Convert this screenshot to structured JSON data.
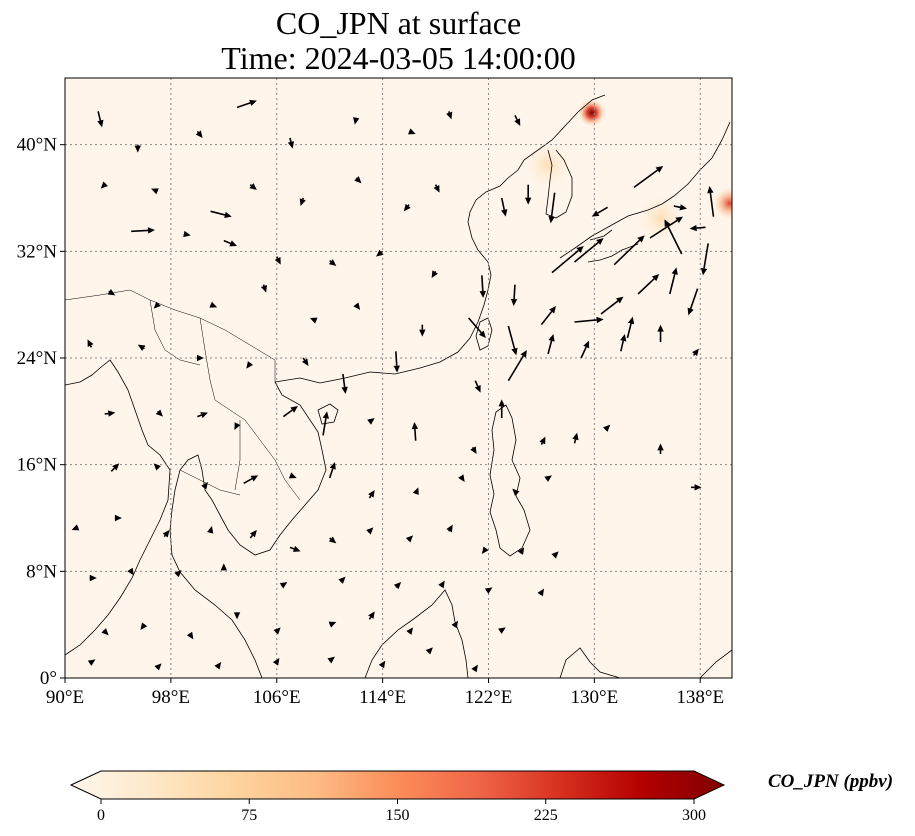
{
  "map": {
    "title_line1": "CO_JPN at surface",
    "title_line2": "Time: 2024-03-05 14:00:00",
    "lon_range": [
      90,
      140.4
    ],
    "lat_range": [
      0,
      45
    ],
    "lon_ticks": [
      {
        "value": 90,
        "label": "90°E"
      },
      {
        "value": 98,
        "label": "98°E"
      },
      {
        "value": 106,
        "label": "106°E"
      },
      {
        "value": 114,
        "label": "114°E"
      },
      {
        "value": 122,
        "label": "122°E"
      },
      {
        "value": 130,
        "label": "130°E"
      },
      {
        "value": 138,
        "label": "138°E"
      }
    ],
    "lat_ticks": [
      {
        "value": 0,
        "label": "0°"
      },
      {
        "value": 8,
        "label": "8°N"
      },
      {
        "value": 16,
        "label": "16°N"
      },
      {
        "value": 24,
        "label": "24°N"
      },
      {
        "value": 32,
        "label": "32°N"
      },
      {
        "value": 40,
        "label": "40°N"
      }
    ],
    "gridlines": "dotted",
    "background_color": "#fff5eb",
    "coastline_color": "#000000",
    "hotspots": [
      {
        "lon": 129.8,
        "lat": 42.4,
        "level": "max"
      },
      {
        "lon": 140.2,
        "lat": 35.6,
        "level": "high"
      },
      {
        "lon": 126.5,
        "lat": 38.5,
        "level": "low"
      },
      {
        "lon": 135.0,
        "lat": 34.5,
        "level": "low"
      }
    ],
    "wind_vectors_note_units": "degrees lon/lat",
    "wind_vectors": [
      [
        92.5,
        42.5,
        0.3,
        -1.2
      ],
      [
        95.5,
        40,
        0,
        -0.6
      ],
      [
        100,
        41,
        0.4,
        -0.5
      ],
      [
        103,
        42.8,
        1.5,
        0.5
      ],
      [
        107,
        40.5,
        0.2,
        -0.8
      ],
      [
        112,
        42,
        -0.1,
        -0.5
      ],
      [
        116,
        41,
        0.5,
        -0.2
      ],
      [
        119,
        42.5,
        0.2,
        -0.6
      ],
      [
        124,
        42.2,
        0.4,
        -0.8
      ],
      [
        93,
        37,
        -0.3,
        -0.3
      ],
      [
        97,
        36.5,
        -0.5,
        0.2
      ],
      [
        101,
        35,
        1.6,
        -0.4
      ],
      [
        104,
        37,
        0.5,
        -0.4
      ],
      [
        108,
        36,
        -0.2,
        -0.6
      ],
      [
        112,
        37.5,
        0.4,
        -0.4
      ],
      [
        116,
        35.5,
        -0.4,
        -0.5
      ],
      [
        118,
        37,
        0.3,
        -0.6
      ],
      [
        123,
        36,
        0.3,
        -1.4
      ],
      [
        125,
        37,
        0,
        -1.5
      ],
      [
        127,
        36.4,
        -0.3,
        -2.3
      ],
      [
        131,
        35.3,
        -1.2,
        -0.7
      ],
      [
        133,
        36.8,
        2.2,
        1.6
      ],
      [
        136,
        35.4,
        1,
        -0.2
      ],
      [
        139,
        34.6,
        -0.3,
        2.3
      ],
      [
        138.4,
        33.8,
        -1.2,
        -0.1
      ],
      [
        95,
        33.5,
        1.8,
        0.1
      ],
      [
        99,
        33.3,
        0.5,
        -0.1
      ],
      [
        102,
        32.8,
        1,
        -0.4
      ],
      [
        106,
        31.6,
        0.3,
        -0.6
      ],
      [
        110,
        31.3,
        0.5,
        -0.4
      ],
      [
        114,
        32,
        -0.5,
        -0.4
      ],
      [
        118,
        30.5,
        -0.3,
        -0.5
      ],
      [
        121.5,
        30.2,
        0.1,
        -1.7
      ],
      [
        124,
        29.5,
        -0.1,
        -1.6
      ],
      [
        126.8,
        30.4,
        2.4,
        2
      ],
      [
        128.5,
        31.2,
        2.2,
        1.8
      ],
      [
        131.5,
        31,
        2.3,
        2.2
      ],
      [
        134.2,
        33,
        2.5,
        1.6
      ],
      [
        136.6,
        31.8,
        -1.3,
        2.6
      ],
      [
        138.6,
        32.6,
        -0.4,
        -2.4
      ],
      [
        93.3,
        29,
        0.5,
        -0.3
      ],
      [
        97,
        28,
        -0.3,
        -0.3
      ],
      [
        101,
        28,
        0.5,
        -0.2
      ],
      [
        105,
        29.5,
        0.2,
        -0.6
      ],
      [
        109,
        26.8,
        -0.5,
        0.2
      ],
      [
        112,
        28,
        0.3,
        -0.4
      ],
      [
        117,
        26.5,
        0,
        -0.9
      ],
      [
        120.5,
        27,
        1.3,
        -1.5
      ],
      [
        123.5,
        26.4,
        0.6,
        -2.2
      ],
      [
        126,
        26.5,
        1.1,
        1.4
      ],
      [
        128.5,
        26.7,
        2.2,
        0.2
      ],
      [
        130.5,
        27.3,
        1.7,
        1.3
      ],
      [
        133.3,
        28.8,
        1.6,
        1.5
      ],
      [
        135.7,
        28.8,
        0.5,
        2
      ],
      [
        137.8,
        29.2,
        -0.7,
        -2
      ],
      [
        135,
        25.2,
        0,
        1.3
      ],
      [
        132.5,
        25.5,
        0.4,
        1.6
      ],
      [
        92,
        24.8,
        -0.3,
        0.6
      ],
      [
        96,
        24.7,
        -0.5,
        0.3
      ],
      [
        100,
        24,
        0.5,
        0
      ],
      [
        104,
        23.6,
        -0.3,
        -0.4
      ],
      [
        108,
        24,
        0.4,
        -0.6
      ],
      [
        111,
        22.8,
        0.2,
        -1.5
      ],
      [
        115,
        24.5,
        0.1,
        -1.6
      ],
      [
        121,
        22.3,
        0.4,
        -0.9
      ],
      [
        123.5,
        22.3,
        1.4,
        2.3
      ],
      [
        126.5,
        24.3,
        0.4,
        1.5
      ],
      [
        129,
        24,
        0.6,
        1.3
      ],
      [
        132,
        24.5,
        0.3,
        1.3
      ],
      [
        137.5,
        24.2,
        0.4,
        0.5
      ],
      [
        93,
        19.8,
        0.8,
        0.1
      ],
      [
        97,
        20,
        0.4,
        -0.4
      ],
      [
        100,
        19.6,
        0.8,
        0.3
      ],
      [
        103,
        19,
        -0.2,
        -0.4
      ],
      [
        106.5,
        19.6,
        1.1,
        0.8
      ],
      [
        109.5,
        18.2,
        0.3,
        1.8
      ],
      [
        113,
        19.2,
        0.4,
        0.3
      ],
      [
        116.5,
        17.8,
        -0.1,
        1.4
      ],
      [
        120.8,
        17.3,
        0.3,
        -0.5
      ],
      [
        123,
        19.5,
        0,
        1.4
      ],
      [
        126,
        17.5,
        0.3,
        0.6
      ],
      [
        128.5,
        17.6,
        0.2,
        0.8
      ],
      [
        131,
        18.8,
        0.2,
        0.2
      ],
      [
        135,
        16.8,
        0,
        0.8
      ],
      [
        93.5,
        15.5,
        0.6,
        0.6
      ],
      [
        97,
        15.8,
        -0.3,
        0.3
      ],
      [
        100.5,
        14.3,
        0.3,
        0.4
      ],
      [
        103.5,
        14.6,
        1.1,
        0.6
      ],
      [
        107,
        15.2,
        0.5,
        -0.2
      ],
      [
        110,
        15,
        0.4,
        1.2
      ],
      [
        113,
        13.5,
        0.4,
        0.6
      ],
      [
        116.5,
        13.8,
        0.2,
        0.5
      ],
      [
        120,
        15,
        0.2,
        -0.3
      ],
      [
        124,
        14,
        -0.2,
        0.2
      ],
      [
        126.5,
        15,
        0.3,
        0.2
      ],
      [
        137.3,
        14.3,
        0.8,
        0
      ],
      [
        91,
        11.3,
        -0.5,
        -0.2
      ],
      [
        94,
        12,
        0.3,
        0
      ],
      [
        97.5,
        10.6,
        0.4,
        0.5
      ],
      [
        101,
        11,
        0.1,
        0.4
      ],
      [
        104,
        10.5,
        0.5,
        0.6
      ],
      [
        107,
        9.8,
        0.8,
        -0.3
      ],
      [
        110,
        10.5,
        0.5,
        -0.4
      ],
      [
        113,
        11,
        0.3,
        0.3
      ],
      [
        116,
        10.4,
        0.3,
        0.3
      ],
      [
        119,
        11,
        0.3,
        0.5
      ],
      [
        121.8,
        9.7,
        -0.3,
        -0.4
      ],
      [
        124.5,
        9.5,
        0.2,
        0.3
      ],
      [
        127,
        9.2,
        0.3,
        0.3
      ],
      [
        92,
        7.5,
        0.4,
        0
      ],
      [
        95,
        8,
        0.2,
        -0.3
      ],
      [
        98.5,
        7.8,
        0.3,
        0.3
      ],
      [
        102,
        8.2,
        0,
        0.4
      ],
      [
        106.5,
        7,
        0.3,
        0.2
      ],
      [
        111,
        7.4,
        0.2,
        0.2
      ],
      [
        115,
        6.8,
        0.4,
        0.4
      ],
      [
        118.5,
        7,
        0.2,
        0.3
      ],
      [
        122,
        6.6,
        0.3,
        0.2
      ],
      [
        126,
        6.4,
        0.2,
        0.3
      ],
      [
        93,
        3.5,
        0.3,
        -0.3
      ],
      [
        96,
        4,
        -0.3,
        -0.4
      ],
      [
        99.5,
        3.2,
        0.2,
        -0.3
      ],
      [
        103,
        4.6,
        0,
        -0.2
      ],
      [
        106,
        3.5,
        0.3,
        0.3
      ],
      [
        110,
        4,
        0.5,
        0.2
      ],
      [
        113,
        4.4,
        0.4,
        0.6
      ],
      [
        116,
        3.4,
        0.3,
        0.4
      ],
      [
        119.5,
        4,
        0.2,
        0.3
      ],
      [
        123,
        3.6,
        0.3,
        0.2
      ],
      [
        92,
        1.2,
        0.3,
        0.2
      ],
      [
        97,
        0.8,
        0.3,
        0.3
      ],
      [
        101.5,
        0.8,
        0.3,
        0.4
      ],
      [
        106,
        1.2,
        0.2,
        0.3
      ],
      [
        110,
        1.3,
        0.4,
        0.3
      ],
      [
        114,
        1,
        0.2,
        0.3
      ],
      [
        117.5,
        2,
        0.3,
        0.3
      ],
      [
        121,
        0.7,
        0.2,
        0.3
      ]
    ]
  },
  "colorbar": {
    "title": "CO_JPN (ppbv)",
    "min": 0,
    "max": 300,
    "extend": "both",
    "colormap": "OrRd",
    "colors": [
      "#fff7ec",
      "#fee8c8",
      "#fdd49e",
      "#fdbb84",
      "#fc8d59",
      "#ef6548",
      "#d7301f",
      "#b30000",
      "#7f0000"
    ],
    "ticks": [
      {
        "value": 0,
        "label": "0"
      },
      {
        "value": 75,
        "label": "75"
      },
      {
        "value": 150,
        "label": "150"
      },
      {
        "value": 225,
        "label": "225"
      },
      {
        "value": 300,
        "label": "300"
      }
    ]
  }
}
